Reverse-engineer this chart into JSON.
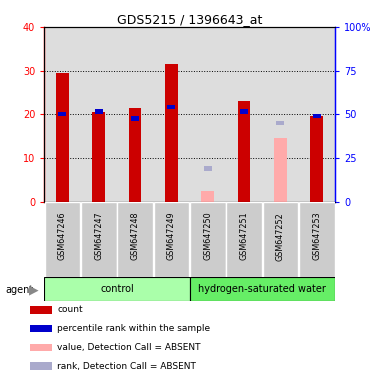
{
  "title": "GDS5215 / 1396643_at",
  "samples": [
    "GSM647246",
    "GSM647247",
    "GSM647248",
    "GSM647249",
    "GSM647250",
    "GSM647251",
    "GSM647252",
    "GSM647253"
  ],
  "red_values": [
    29.5,
    20.5,
    21.5,
    31.5,
    null,
    23.0,
    null,
    19.5
  ],
  "blue_rank_pct": [
    50.0,
    51.5,
    47.5,
    54.0,
    null,
    51.5,
    null,
    49.0
  ],
  "pink_values": [
    null,
    null,
    null,
    null,
    2.5,
    null,
    14.5,
    null
  ],
  "lavender_rank_pct": [
    null,
    null,
    null,
    null,
    19.0,
    null,
    45.0,
    null
  ],
  "red_color": "#cc0000",
  "blue_color": "#0000cc",
  "pink_color": "#ffaaaa",
  "lavender_color": "#aaaacc",
  "control_color": "#aaffaa",
  "hsw_color": "#66ee66",
  "bar_bg_color": "#cccccc",
  "ylim_left": [
    0,
    40
  ],
  "ylim_right": [
    0,
    100
  ],
  "group_labels": [
    "control",
    "hydrogen-saturated water"
  ],
  "legend_items": [
    {
      "label": "count",
      "color": "#cc0000"
    },
    {
      "label": "percentile rank within the sample",
      "color": "#0000cc"
    },
    {
      "label": "value, Detection Call = ABSENT",
      "color": "#ffaaaa"
    },
    {
      "label": "rank, Detection Call = ABSENT",
      "color": "#aaaacc"
    }
  ]
}
